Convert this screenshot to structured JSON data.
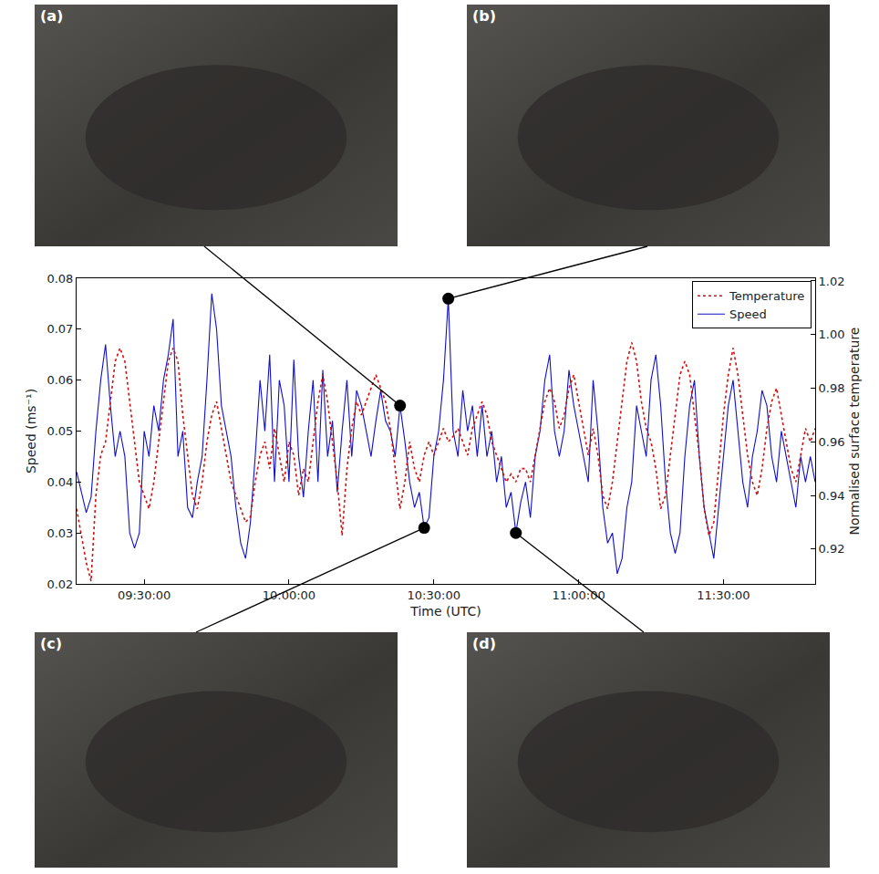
{
  "chart_data": {
    "type": "line",
    "x_label": "Time (UTC)",
    "y_label": "Speed (ms⁻¹)",
    "y2_label": "Normalised surface temperature",
    "x": [
      "09:16:00",
      "09:17:00",
      "09:18:00",
      "09:19:00",
      "09:20:00",
      "09:21:00",
      "09:22:00",
      "09:23:00",
      "09:24:00",
      "09:25:00",
      "09:26:00",
      "09:27:00",
      "09:28:00",
      "09:29:00",
      "09:30:00",
      "09:31:00",
      "09:32:00",
      "09:33:00",
      "09:34:00",
      "09:35:00",
      "09:36:00",
      "09:37:00",
      "09:38:00",
      "09:39:00",
      "09:40:00",
      "09:41:00",
      "09:42:00",
      "09:43:00",
      "09:44:00",
      "09:45:00",
      "09:46:00",
      "09:47:00",
      "09:48:00",
      "09:49:00",
      "09:50:00",
      "09:51:00",
      "09:52:00",
      "09:53:00",
      "09:54:00",
      "09:55:00",
      "09:56:00",
      "09:57:00",
      "09:58:00",
      "09:59:00",
      "10:00:00",
      "10:01:00",
      "10:02:00",
      "10:03:00",
      "10:04:00",
      "10:05:00",
      "10:06:00",
      "10:07:00",
      "10:08:00",
      "10:09:00",
      "10:10:00",
      "10:11:00",
      "10:12:00",
      "10:13:00",
      "10:14:00",
      "10:15:00",
      "10:16:00",
      "10:17:00",
      "10:18:00",
      "10:19:00",
      "10:20:00",
      "10:21:00",
      "10:22:00",
      "10:23:00",
      "10:24:00",
      "10:25:00",
      "10:26:00",
      "10:27:00",
      "10:28:00",
      "10:29:00",
      "10:30:00",
      "10:31:00",
      "10:32:00",
      "10:33:00",
      "10:34:00",
      "10:35:00",
      "10:36:00",
      "10:37:00",
      "10:38:00",
      "10:39:00",
      "10:40:00",
      "10:41:00",
      "10:42:00",
      "10:43:00",
      "10:44:00",
      "10:45:00",
      "10:46:00",
      "10:47:00",
      "10:48:00",
      "10:49:00",
      "10:50:00",
      "10:51:00",
      "10:52:00",
      "10:53:00",
      "10:54:00",
      "10:55:00",
      "10:56:00",
      "10:57:00",
      "10:58:00",
      "10:59:00",
      "11:00:00",
      "11:01:00",
      "11:02:00",
      "11:03:00",
      "11:04:00",
      "11:05:00",
      "11:06:00",
      "11:07:00",
      "11:08:00",
      "11:09:00",
      "11:10:00",
      "11:11:00",
      "11:12:00",
      "11:13:00",
      "11:14:00",
      "11:15:00",
      "11:16:00",
      "11:17:00",
      "11:18:00",
      "11:19:00",
      "11:20:00",
      "11:21:00",
      "11:22:00",
      "11:23:00",
      "11:24:00",
      "11:25:00",
      "11:26:00",
      "11:27:00",
      "11:28:00",
      "11:29:00",
      "11:30:00",
      "11:31:00",
      "11:32:00",
      "11:33:00",
      "11:34:00",
      "11:35:00",
      "11:36:00",
      "11:37:00",
      "11:38:00",
      "11:39:00",
      "11:40:00",
      "11:41:00",
      "11:42:00",
      "11:43:00",
      "11:44:00",
      "11:45:00",
      "11:46:00",
      "11:47:00",
      "11:48:00",
      "11:49:00"
    ],
    "series": [
      {
        "name": "Temperature",
        "color": "#cc1111",
        "line_style": "dotted",
        "axis": "y2",
        "values": [
          0.935,
          0.925,
          0.915,
          0.908,
          0.94,
          0.955,
          0.96,
          0.975,
          0.99,
          0.995,
          0.99,
          0.975,
          0.96,
          0.945,
          0.94,
          0.935,
          0.945,
          0.96,
          0.975,
          0.99,
          0.995,
          0.99,
          0.97,
          0.955,
          0.94,
          0.935,
          0.945,
          0.96,
          0.97,
          0.975,
          0.965,
          0.955,
          0.945,
          0.94,
          0.935,
          0.93,
          0.932,
          0.945,
          0.955,
          0.96,
          0.95,
          0.965,
          0.955,
          0.945,
          0.96,
          0.955,
          0.94,
          0.95,
          0.945,
          0.96,
          0.975,
          0.985,
          0.975,
          0.96,
          0.945,
          0.925,
          0.95,
          0.965,
          0.975,
          0.97,
          0.975,
          0.98,
          0.985,
          0.98,
          0.975,
          0.965,
          0.95,
          0.935,
          0.945,
          0.96,
          0.95,
          0.945,
          0.955,
          0.96,
          0.955,
          0.96,
          0.965,
          0.96,
          0.962,
          0.965,
          0.96,
          0.955,
          0.965,
          0.97,
          0.975,
          0.97,
          0.96,
          0.955,
          0.95,
          0.945,
          0.948,
          0.945,
          0.95,
          0.95,
          0.945,
          0.955,
          0.965,
          0.975,
          0.98,
          0.975,
          0.965,
          0.97,
          0.98,
          0.985,
          0.975,
          0.965,
          0.955,
          0.965,
          0.955,
          0.94,
          0.935,
          0.945,
          0.96,
          0.975,
          0.99,
          0.997,
          0.99,
          0.975,
          0.965,
          0.96,
          0.95,
          0.935,
          0.94,
          0.955,
          0.97,
          0.985,
          0.99,
          0.985,
          0.97,
          0.955,
          0.935,
          0.925,
          0.93,
          0.95,
          0.97,
          0.985,
          0.995,
          0.985,
          0.97,
          0.955,
          0.945,
          0.94,
          0.95,
          0.965,
          0.975,
          0.98,
          0.97,
          0.96,
          0.95,
          0.945,
          0.955,
          0.965,
          0.96,
          0.965
        ]
      },
      {
        "name": "Speed",
        "color": "#1010cc",
        "line_style": "solid",
        "values": [
          0.042,
          0.038,
          0.034,
          0.037,
          0.05,
          0.06,
          0.067,
          0.055,
          0.045,
          0.05,
          0.045,
          0.03,
          0.027,
          0.03,
          0.05,
          0.045,
          0.055,
          0.05,
          0.06,
          0.065,
          0.072,
          0.045,
          0.05,
          0.035,
          0.033,
          0.04,
          0.045,
          0.06,
          0.077,
          0.07,
          0.055,
          0.05,
          0.045,
          0.035,
          0.028,
          0.025,
          0.032,
          0.045,
          0.06,
          0.05,
          0.065,
          0.04,
          0.06,
          0.055,
          0.04,
          0.064,
          0.045,
          0.037,
          0.05,
          0.06,
          0.04,
          0.062,
          0.045,
          0.052,
          0.038,
          0.05,
          0.06,
          0.045,
          0.058,
          0.055,
          0.05,
          0.045,
          0.052,
          0.058,
          0.052,
          0.05,
          0.045,
          0.055,
          0.048,
          0.04,
          0.035,
          0.038,
          0.031,
          0.033,
          0.045,
          0.05,
          0.06,
          0.076,
          0.05,
          0.045,
          0.058,
          0.05,
          0.055,
          0.045,
          0.055,
          0.045,
          0.05,
          0.04,
          0.045,
          0.035,
          0.038,
          0.03,
          0.036,
          0.04,
          0.033,
          0.045,
          0.05,
          0.06,
          0.065,
          0.05,
          0.045,
          0.05,
          0.062,
          0.055,
          0.05,
          0.045,
          0.04,
          0.06,
          0.05,
          0.035,
          0.028,
          0.03,
          0.022,
          0.025,
          0.035,
          0.04,
          0.055,
          0.05,
          0.045,
          0.06,
          0.065,
          0.055,
          0.04,
          0.03,
          0.026,
          0.03,
          0.045,
          0.055,
          0.06,
          0.045,
          0.035,
          0.03,
          0.025,
          0.035,
          0.045,
          0.055,
          0.06,
          0.05,
          0.04,
          0.035,
          0.045,
          0.05,
          0.058,
          0.055,
          0.045,
          0.04,
          0.05,
          0.045,
          0.04,
          0.035,
          0.045,
          0.04,
          0.045,
          0.04
        ]
      }
    ],
    "xlim": [
      "09:16:00",
      "11:49:00"
    ],
    "xticks": [
      "09:30:00",
      "10:00:00",
      "10:30:00",
      "11:00:00",
      "11:30:00"
    ],
    "ylim": [
      0.02,
      0.08
    ],
    "yticks": [
      0.02,
      0.03,
      0.04,
      0.05,
      0.06,
      0.07,
      0.08
    ],
    "y2lim": [
      0.907,
      1.021
    ],
    "y2ticks": [
      0.92,
      0.94,
      0.96,
      0.98,
      {
        "value": 1,
        "label": "1.00"
      },
      1.02
    ],
    "legend": "upper right",
    "grid": false,
    "annotations": [
      {
        "text": "(a)",
        "x": "10:23:00",
        "y": 0.055
      },
      {
        "text": "(b)",
        "x": "10:33:00",
        "y": 0.076
      },
      {
        "text": "(c)",
        "x": "10:28:00",
        "y": 0.031
      },
      {
        "text": "(d)",
        "x": "10:47:00",
        "y": 0.03
      }
    ]
  }
}
